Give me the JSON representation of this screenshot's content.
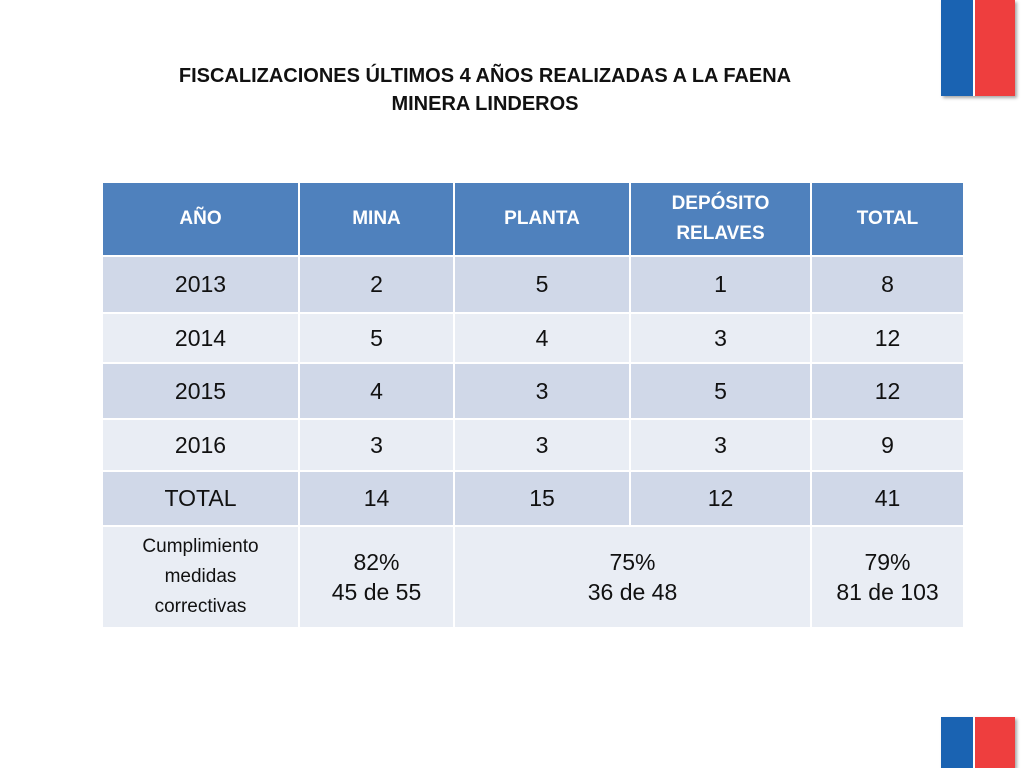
{
  "title": {
    "line1": "FISCALIZACIONES ÚLTIMOS 4 AÑOS REALIZADAS A LA FAENA",
    "line2": "MINERA LINDEROS"
  },
  "table": {
    "headers": [
      "AÑO",
      "MINA",
      "PLANTA",
      "DEPÓSITO",
      "RELAVES",
      "TOTAL"
    ],
    "rows": [
      [
        "2013",
        "2",
        "5",
        "1",
        "8"
      ],
      [
        "2014",
        "5",
        "4",
        "3",
        "12"
      ],
      [
        "2015",
        "4",
        "3",
        "5",
        "12"
      ],
      [
        "2016",
        "3",
        "3",
        "3",
        "9"
      ],
      [
        "TOTAL",
        "14",
        "15",
        "12",
        "41"
      ]
    ],
    "compliance": {
      "label": [
        "Cumplimiento",
        "medidas",
        "correctivas"
      ],
      "mina": {
        "pct": "82%",
        "detail": "45 de 55"
      },
      "planta_deposito": {
        "pct": "75%",
        "detail": "36 de 48"
      },
      "total": {
        "pct": "79%",
        "detail": "81 de 103"
      }
    }
  },
  "colors": {
    "header_bg": "#4f81bd",
    "band_dark": "#d0d8e8",
    "band_light": "#e9edf4",
    "flag_blue": "#1a63b2",
    "flag_red": "#ee3e3e"
  }
}
